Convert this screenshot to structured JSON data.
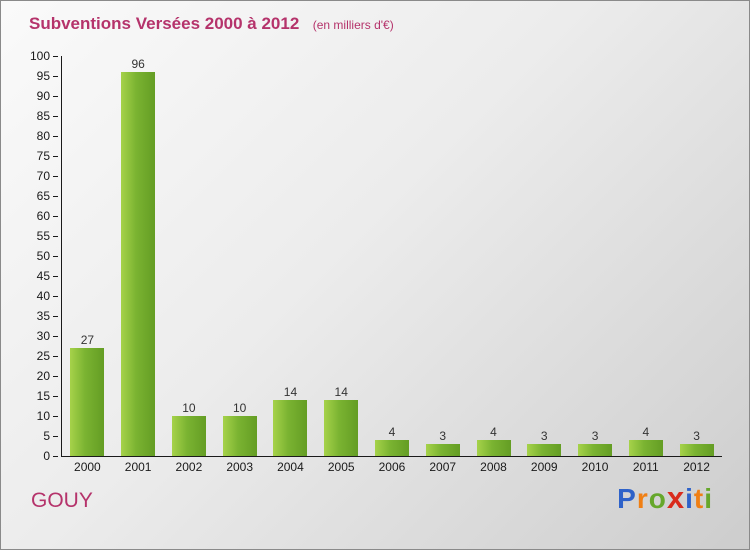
{
  "header": {
    "title": "Subventions Versées 2000 à 2012",
    "subtitle": "(en milliers d'€)"
  },
  "footer": {
    "org": "GOUY"
  },
  "logo": {
    "letters": [
      {
        "ch": "P",
        "color": "#2e62c9"
      },
      {
        "ch": "r",
        "color": "#f07f13"
      },
      {
        "ch": "o",
        "color": "#66a72b"
      },
      {
        "ch": "x",
        "color": "#d92b1c",
        "big": true
      },
      {
        "ch": "i",
        "color": "#2e62c9"
      },
      {
        "ch": "t",
        "color": "#f07f13"
      },
      {
        "ch": "i",
        "color": "#66a72b"
      }
    ]
  },
  "chart_data": {
    "type": "bar",
    "title": "Subventions Versées 2000 à 2012",
    "subtitle": "(en milliers d'€)",
    "categories": [
      "2000",
      "2001",
      "2002",
      "2003",
      "2004",
      "2005",
      "2006",
      "2007",
      "2008",
      "2009",
      "2010",
      "2011",
      "2012"
    ],
    "values": [
      27,
      96,
      10,
      10,
      14,
      14,
      4,
      3,
      4,
      3,
      3,
      4,
      3
    ],
    "xlabel": "",
    "ylabel": "",
    "ylim": [
      0,
      100
    ],
    "ytick_step": 5,
    "grid": false,
    "legend": "none",
    "bar_color_light": "#a6d24a",
    "bar_color_dark": "#649d24",
    "accent_color": "#b5336b"
  }
}
